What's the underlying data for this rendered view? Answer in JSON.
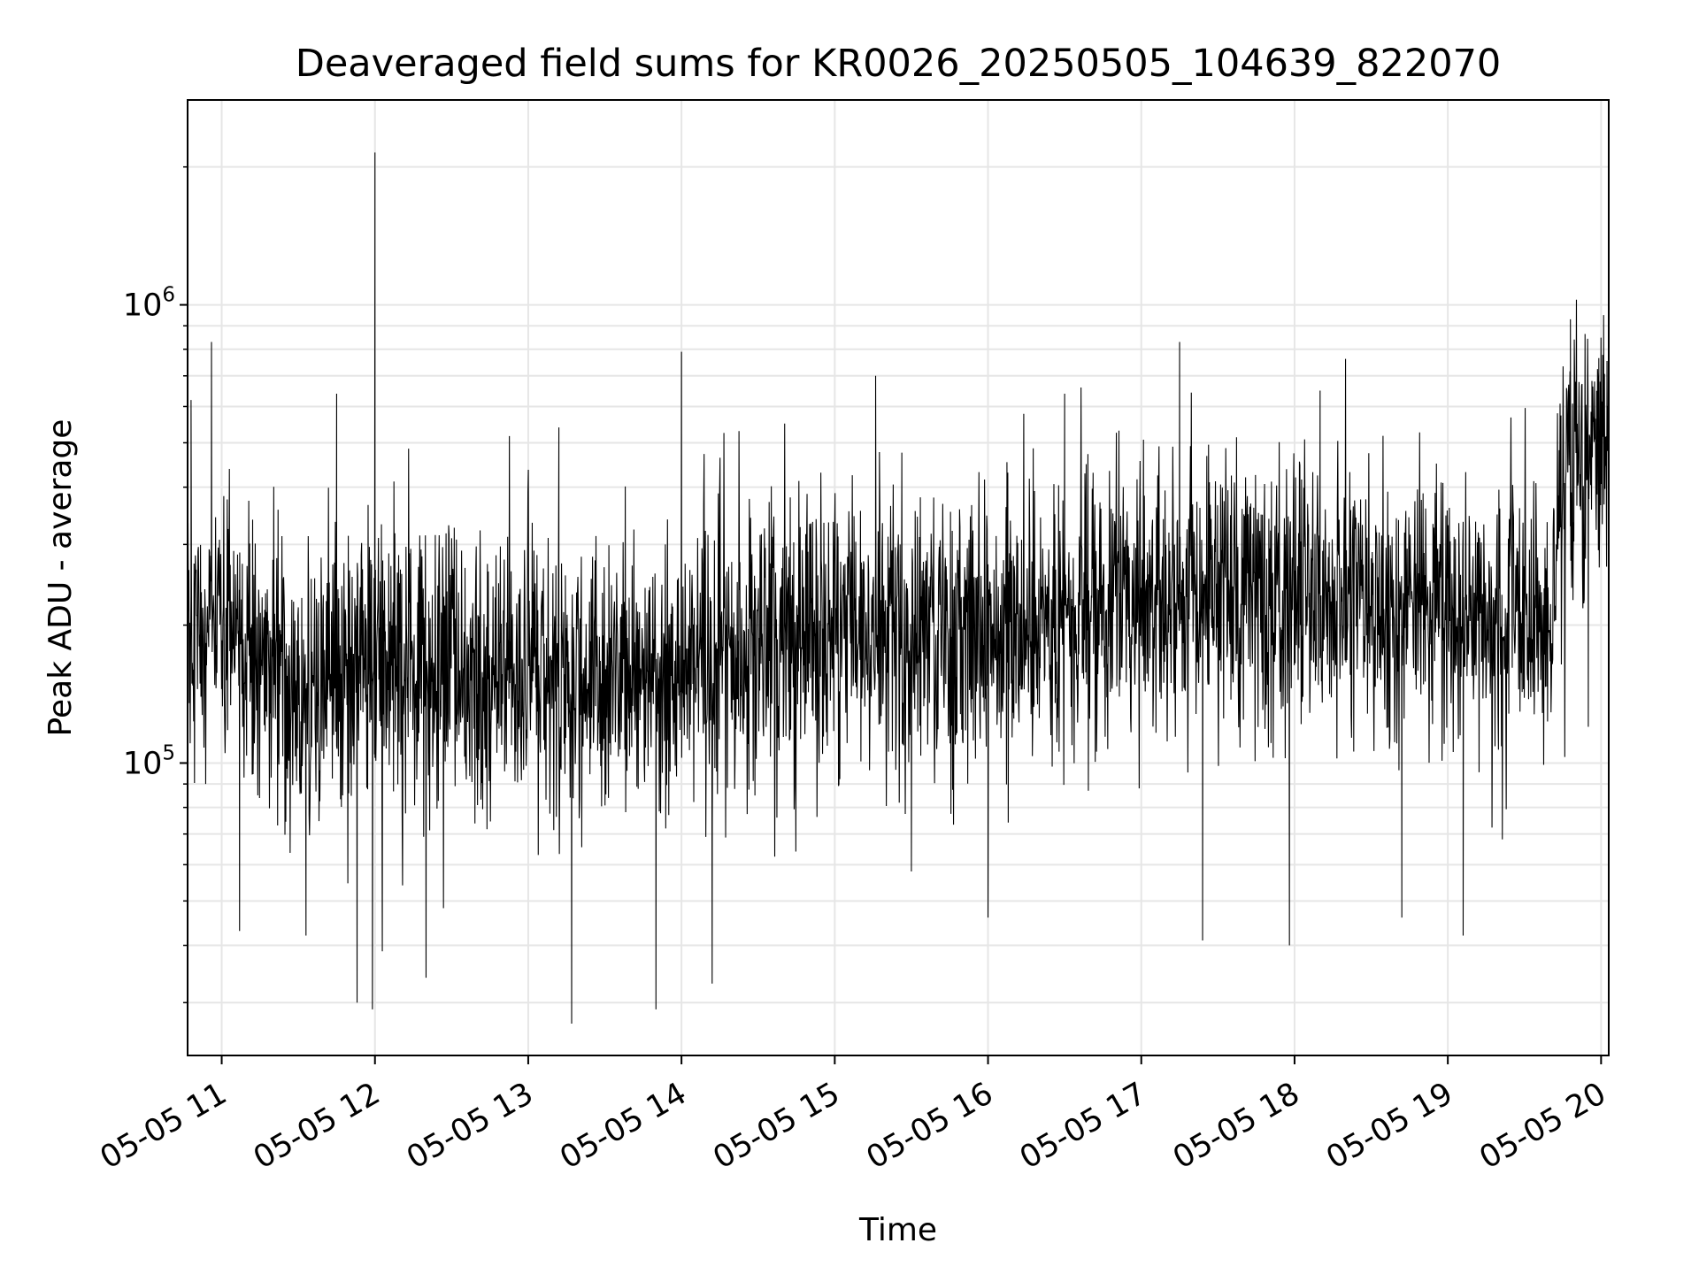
{
  "chart_data": {
    "type": "line",
    "title": "Deaveraged field sums for KR0026_20250505_104639_822070",
    "xlabel": "Time",
    "ylabel": "Peak ADU - average",
    "x_axis_kind": "time",
    "x_range": [
      "2025-05-05 10:46:39",
      "2025-05-05 20:03:00"
    ],
    "x_ticks": [
      {
        "t": "2025-05-05 11:00",
        "label": "05-05 11"
      },
      {
        "t": "2025-05-05 12:00",
        "label": "05-05 12"
      },
      {
        "t": "2025-05-05 13:00",
        "label": "05-05 13"
      },
      {
        "t": "2025-05-05 14:00",
        "label": "05-05 14"
      },
      {
        "t": "2025-05-05 15:00",
        "label": "05-05 15"
      },
      {
        "t": "2025-05-05 16:00",
        "label": "05-05 16"
      },
      {
        "t": "2025-05-05 17:00",
        "label": "05-05 17"
      },
      {
        "t": "2025-05-05 18:00",
        "label": "05-05 18"
      },
      {
        "t": "2025-05-05 19:00",
        "label": "05-05 19"
      },
      {
        "t": "2025-05-05 20:00",
        "label": "05-05 20"
      }
    ],
    "y_scale": "log",
    "ylim": [
      23000,
      2800000
    ],
    "y_ticks": [
      {
        "value": 100000,
        "base": "10",
        "exp": "5"
      },
      {
        "value": 1000000,
        "base": "10",
        "exp": "6"
      }
    ],
    "grid": true,
    "line_color": "#000000",
    "grid_color": "#e6e6e6",
    "series": [
      {
        "x": [
          "2025-05-05 10:46:39",
          "2025-05-05 11:00",
          "2025-05-05 11:30",
          "2025-05-05 12:00",
          "2025-05-05 12:30",
          "2025-05-05 13:00",
          "2025-05-05 13:30",
          "2025-05-05 14:00",
          "2025-05-05 14:30",
          "2025-05-05 15:00",
          "2025-05-05 15:30",
          "2025-05-05 16:00",
          "2025-05-05 16:30",
          "2025-05-05 17:00",
          "2025-05-05 17:30",
          "2025-05-05 18:00",
          "2025-05-05 18:30",
          "2025-05-05 19:00",
          "2025-05-05 19:30",
          "2025-05-05 19:40",
          "2025-05-05 19:45",
          "2025-05-05 20:03"
        ],
        "median": [
          200000,
          185000,
          145000,
          165000,
          150000,
          160000,
          150000,
          160000,
          175000,
          190000,
          200000,
          205000,
          215000,
          225000,
          235000,
          240000,
          225000,
          210000,
          205000,
          195000,
          450000,
          470000
        ],
        "spikes": [
          {
            "t": "2025-05-05 10:48",
            "value": 620000
          },
          {
            "t": "2025-05-05 10:56",
            "value": 830000
          },
          {
            "t": "2025-05-05 11:07",
            "value": 43000
          },
          {
            "t": "2025-05-05 11:33",
            "value": 42000
          },
          {
            "t": "2025-05-05 11:45",
            "value": 640000
          },
          {
            "t": "2025-05-05 11:53",
            "value": 30000
          },
          {
            "t": "2025-05-05 11:59",
            "value": 29000
          },
          {
            "t": "2025-05-05 12:00",
            "value": 2150000
          },
          {
            "t": "2025-05-05 12:20",
            "value": 34000
          },
          {
            "t": "2025-05-05 13:12",
            "value": 540000
          },
          {
            "t": "2025-05-05 13:17",
            "value": 27000
          },
          {
            "t": "2025-05-05 13:50",
            "value": 29000
          },
          {
            "t": "2025-05-05 14:00",
            "value": 790000
          },
          {
            "t": "2025-05-05 14:12",
            "value": 33000
          },
          {
            "t": "2025-05-05 15:16",
            "value": 700000
          },
          {
            "t": "2025-05-05 15:30",
            "value": 58000
          },
          {
            "t": "2025-05-05 16:00",
            "value": 46000
          },
          {
            "t": "2025-05-05 16:30",
            "value": 640000
          },
          {
            "t": "2025-05-05 17:15",
            "value": 830000
          },
          {
            "t": "2025-05-05 17:24",
            "value": 41000
          },
          {
            "t": "2025-05-05 17:58",
            "value": 40000
          },
          {
            "t": "2025-05-05 18:10",
            "value": 650000
          },
          {
            "t": "2025-05-05 18:42",
            "value": 46000
          },
          {
            "t": "2025-05-05 19:06",
            "value": 42000
          },
          {
            "t": "2025-05-05 19:48",
            "value": 930000
          },
          {
            "t": "2025-05-05 19:55",
            "value": 120000
          },
          {
            "t": "2025-05-05 20:01",
            "value": 950000
          }
        ]
      }
    ]
  }
}
